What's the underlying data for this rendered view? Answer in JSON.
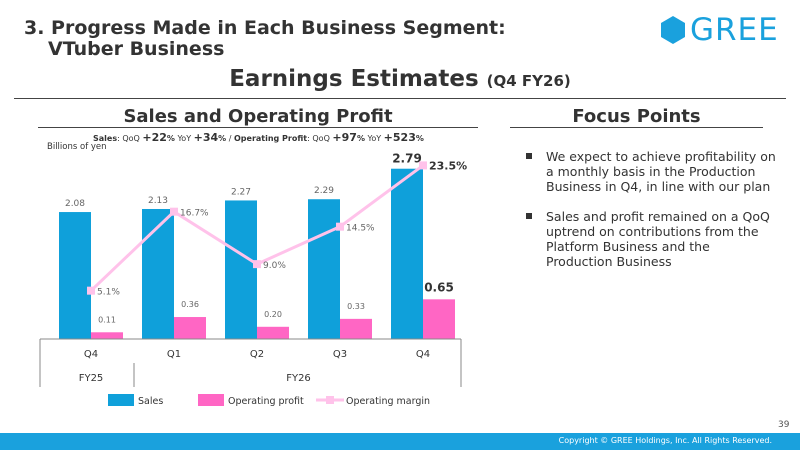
{
  "header": {
    "section_line1": "3. Progress Made in Each Business Segment:",
    "section_line2": "VTuber Business",
    "logo_text": "GREE",
    "main_title": "Earnings Estimates",
    "main_subtitle": "(Q4 FY26)"
  },
  "left_panel": {
    "title": "Sales and Operating Profit",
    "growth": {
      "sales_label": "Sales",
      "qoq_label": "QoQ",
      "yoy_label": "YoY",
      "sales_qoq": "+22",
      "sales_yoy": "+34",
      "pct": "%",
      "separator": "/",
      "op_label": "Operating Profit",
      "op_qoq": "+97",
      "op_yoy": "+523"
    },
    "units": "Billions of yen"
  },
  "right_panel": {
    "title": "Focus Points",
    "points": [
      "We expect to achieve profitability on a monthly basis in the Production Business in Q4, in line with our plan",
      "Sales and profit remained on a QoQ uptrend on contributions from the Platform Business and the Production Business"
    ]
  },
  "chart_data": {
    "type": "bar",
    "categories": [
      "Q4",
      "Q1",
      "Q2",
      "Q3",
      "Q4"
    ],
    "fiscal_groups": [
      {
        "label": "FY25",
        "span": 1
      },
      {
        "label": "FY26",
        "span": 4
      }
    ],
    "series": [
      {
        "name": "Sales",
        "type": "bar",
        "color": "#0fa0da",
        "values": [
          2.08,
          2.13,
          2.27,
          2.29,
          2.79
        ],
        "labels": [
          "2.08",
          "2.13",
          "2.27",
          "2.29",
          "2.79"
        ]
      },
      {
        "name": "Operating profit",
        "type": "bar",
        "color": "#ff66c4",
        "values": [
          0.11,
          0.36,
          0.2,
          0.33,
          0.65
        ],
        "labels": [
          "0.11",
          "0.36",
          "0.20",
          "0.33",
          "0.65"
        ]
      },
      {
        "name": "Operating margin",
        "type": "line",
        "color": "#ffc2ea",
        "values": [
          5.1,
          16.7,
          9.0,
          14.5,
          23.5
        ],
        "labels": [
          "5.1%",
          "16.7%",
          "9.0%",
          "14.5%",
          "23.5%"
        ]
      }
    ],
    "highlight_index": 4,
    "ylabel": "Billions of yen",
    "ylim": [
      0,
      2.9
    ],
    "margin_ylim": [
      -2,
      24
    ],
    "grid": false,
    "legend_position": "bottom"
  },
  "footer": {
    "page_number": "39",
    "copyright": "Copyright © GREE Holdings, Inc. All Rights Reserved."
  }
}
